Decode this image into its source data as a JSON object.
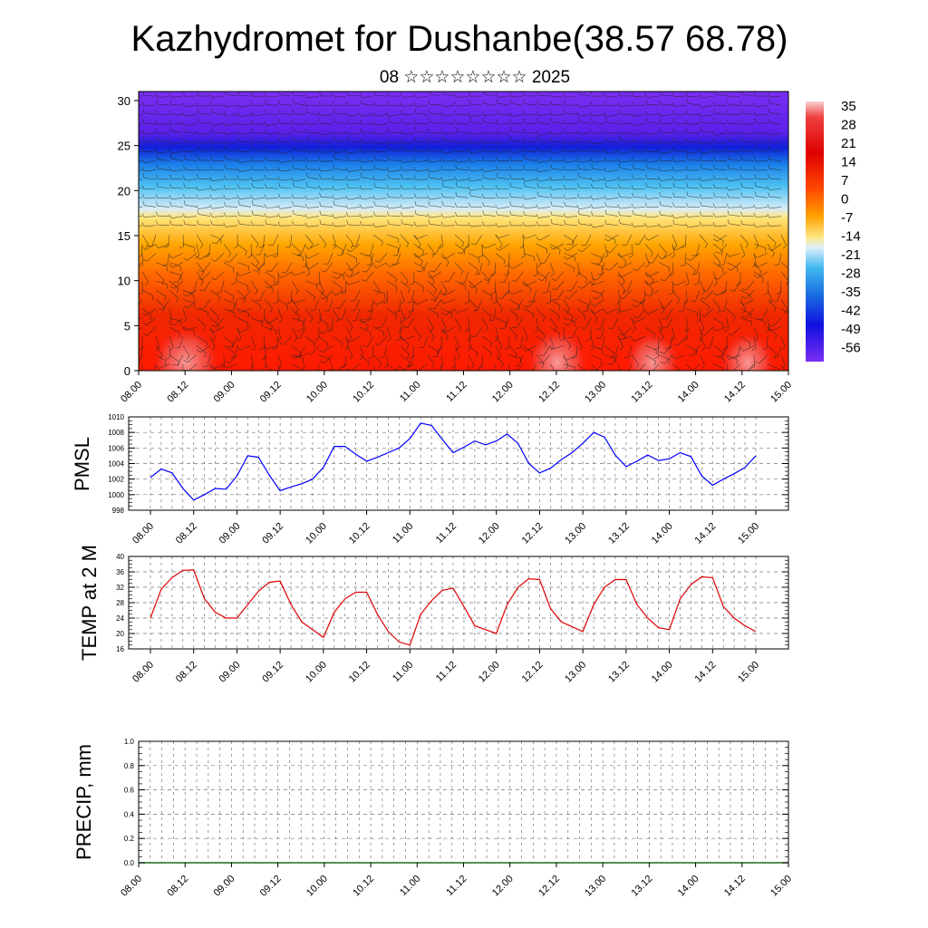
{
  "header": {
    "title": "Kazhydromet for Dushanbe(38.57 68.78)",
    "subtitle": "08 ☆☆☆☆☆☆☆☆ 2025"
  },
  "time_labels": [
    "08.00",
    "08.12",
    "09.00",
    "09.12",
    "10.00",
    "10.12",
    "11.00",
    "11.12",
    "12.00",
    "12.12",
    "13.00",
    "13.12",
    "14.00",
    "14.12",
    "15.00"
  ],
  "colors": {
    "pmsl_line": "#0000ff",
    "temp_line": "#e00000"
  },
  "chart_data": [
    {
      "type": "heatmap",
      "name": "cross-section",
      "ylim": [
        0,
        31
      ],
      "yticks": [
        "0",
        "5",
        "10",
        "15",
        "20",
        "25",
        "30"
      ],
      "colorbar": [
        "35",
        "28",
        "21",
        "14",
        "7",
        "0",
        "-7",
        "-14",
        "-21",
        "-28",
        "-35",
        "-42",
        "-49",
        "-56"
      ],
      "colorbar_range": [
        -63,
        42
      ],
      "overlay": "wind barbs"
    },
    {
      "type": "line",
      "ylabel": "PMSL",
      "ylim": [
        998,
        1010
      ],
      "yticks": [
        "998",
        "1000",
        "1002",
        "1004",
        "1006",
        "1008",
        "1010"
      ],
      "values": [
        1002.2,
        1003.3,
        1002.8,
        1000.8,
        999.3,
        1000.0,
        1000.8,
        1000.7,
        1002.4,
        1005.0,
        1004.8,
        1002.5,
        1000.5,
        1001.0,
        1001.4,
        1002.0,
        1003.5,
        1006.2,
        1006.2,
        1005.2,
        1004.3,
        1004.8,
        1005.4,
        1006.0,
        1007.2,
        1009.2,
        1008.9,
        1007.1,
        1005.4,
        1006.1,
        1006.9,
        1006.4,
        1006.9,
        1007.8,
        1006.6,
        1004.0,
        1002.8,
        1003.4,
        1004.5,
        1005.4,
        1006.6,
        1008.0,
        1007.4,
        1005.1,
        1003.6,
        1004.3,
        1005.1,
        1004.4,
        1004.6,
        1005.4,
        1004.9,
        1002.4,
        1001.2,
        1002.0,
        1002.7,
        1003.5,
        1005.0
      ]
    },
    {
      "type": "line",
      "ylabel": "TEMP at 2 M",
      "ylim": [
        16,
        40
      ],
      "yticks": [
        "16",
        "20",
        "24",
        "28",
        "32",
        "36",
        "40"
      ],
      "values": [
        24.0,
        31.5,
        34.5,
        36.4,
        36.5,
        29.0,
        25.5,
        24.0,
        24.0,
        27.5,
        31.0,
        33.3,
        33.6,
        27.5,
        23.0,
        21.0,
        19.0,
        25.5,
        29.0,
        30.7,
        30.7,
        25.0,
        20.5,
        17.8,
        17.0,
        25.0,
        28.5,
        31.2,
        31.8,
        27.0,
        22.0,
        21.0,
        20.0,
        27.5,
        32.0,
        34.2,
        34.0,
        26.5,
        23.0,
        21.8,
        20.5,
        27.5,
        32.0,
        34.0,
        34.0,
        27.5,
        24.0,
        21.5,
        21.0,
        29.0,
        32.7,
        34.7,
        34.5,
        27.0,
        24.0,
        22.0,
        20.5
      ]
    },
    {
      "type": "bar",
      "ylabel": "PRECIP, mm",
      "ylim": [
        0,
        1.0
      ],
      "yticks": [
        "0.0",
        "0.2",
        "0.4",
        "0.6",
        "0.8",
        "1.0"
      ],
      "values": []
    }
  ]
}
